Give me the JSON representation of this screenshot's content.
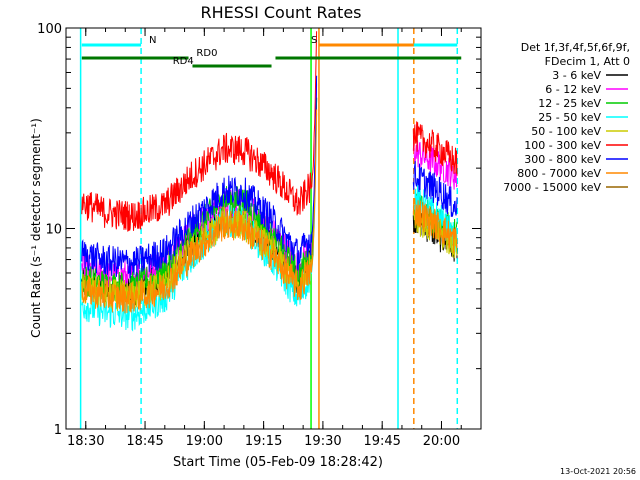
{
  "chart_data": {
    "type": "line",
    "title": "RHESSI Count Rates",
    "xlabel": "Start Time (05-Feb-09 18:28:42)",
    "ylabel": "Count Rate (s⁻¹ detector segment⁻¹)",
    "x_unit": "HH:MM (UT)",
    "xlim": [
      "18:25",
      "20:10"
    ],
    "x_ticks": [
      "18:30",
      "18:45",
      "19:00",
      "19:15",
      "19:30",
      "19:45",
      "20:00"
    ],
    "y_scale": "log",
    "ylim": [
      1,
      100
    ],
    "y_ticks": [
      "1",
      "10",
      "100"
    ],
    "grid": false,
    "legend_position": "right",
    "legend_header": [
      "Det 1f,3f,4f,5f,6f,9f,",
      "FDecim 1, Att 0"
    ],
    "series": [
      {
        "name": "3 - 6 keV",
        "color": "#000000",
        "x": [
          "18:29",
          "18:35",
          "18:42",
          "18:50",
          "18:57",
          "19:05",
          "19:10",
          "19:17",
          "19:24",
          "19:26",
          "19:53",
          "20:00",
          "20:04"
        ],
        "values": [
          5.3,
          5.0,
          4.9,
          5.7,
          8.5,
          11.5,
          11.2,
          8.3,
          5.5,
          6.8,
          11.5,
          9.0,
          8.0
        ]
      },
      {
        "name": "6 - 12 keV",
        "color": "#ff00ff",
        "x": [
          "18:29",
          "18:35",
          "18:42",
          "18:50",
          "18:57",
          "19:05",
          "19:10",
          "19:17",
          "19:24",
          "19:26",
          "19:53",
          "20:00",
          "20:04"
        ],
        "values": [
          6.3,
          5.9,
          5.8,
          6.7,
          10.0,
          13.5,
          13.2,
          9.7,
          6.5,
          7.5,
          24.5,
          20.5,
          18.0
        ]
      },
      {
        "name": "12 - 25 keV",
        "color": "#00cc00",
        "x": [
          "18:29",
          "18:35",
          "18:42",
          "18:50",
          "18:57",
          "19:05",
          "19:10",
          "19:17",
          "19:24",
          "19:26",
          "19:53",
          "20:00",
          "20:04"
        ],
        "values": [
          5.6,
          5.2,
          5.1,
          6.0,
          9.5,
          14.0,
          13.6,
          9.0,
          5.8,
          7.0,
          13.0,
          10.5,
          9.5
        ]
      },
      {
        "name": "25 - 50 keV",
        "color": "#00ffff",
        "x": [
          "18:29",
          "18:35",
          "18:42",
          "18:50",
          "18:57",
          "19:05",
          "19:10",
          "19:17",
          "19:24",
          "19:26",
          "19:53",
          "20:00",
          "20:04"
        ],
        "values": [
          4.2,
          3.8,
          3.7,
          4.5,
          7.2,
          11.0,
          10.6,
          7.0,
          4.4,
          5.5,
          14.5,
          11.0,
          8.5
        ]
      },
      {
        "name": "50 - 100 keV",
        "color": "#cccc00",
        "x": [
          "18:29",
          "18:35",
          "18:42",
          "18:50",
          "18:57",
          "19:05",
          "19:10",
          "19:17",
          "19:24",
          "19:26",
          "19:53",
          "20:00",
          "20:04"
        ],
        "values": [
          5.0,
          4.7,
          4.6,
          5.3,
          7.9,
          10.8,
          10.5,
          7.8,
          5.1,
          6.2,
          11.5,
          9.2,
          8.2
        ]
      },
      {
        "name": "100 - 300 keV",
        "color": "#ff0000",
        "x": [
          "18:29",
          "18:35",
          "18:42",
          "18:50",
          "18:57",
          "19:05",
          "19:10",
          "19:17",
          "19:24",
          "19:26",
          "19:53",
          "20:00",
          "20:04"
        ],
        "values": [
          13.5,
          12.0,
          11.5,
          13.0,
          18.5,
          25.0,
          24.5,
          19.0,
          13.0,
          15.5,
          29.0,
          24.5,
          21.0
        ]
      },
      {
        "name": "300 - 800 keV",
        "color": "#0000ff",
        "x": [
          "18:29",
          "18:35",
          "18:42",
          "18:50",
          "18:57",
          "19:05",
          "19:10",
          "19:17",
          "19:24",
          "19:26",
          "19:53",
          "20:00",
          "20:04"
        ],
        "values": [
          7.5,
          6.9,
          6.7,
          7.6,
          11.0,
          15.5,
          15.2,
          11.2,
          7.3,
          8.6,
          18.5,
          15.0,
          12.5
        ]
      },
      {
        "name": "800 - 7000 keV",
        "color": "#ff8800",
        "x": [
          "18:29",
          "18:35",
          "18:42",
          "18:50",
          "18:57",
          "19:05",
          "19:10",
          "19:17",
          "19:24",
          "19:26",
          "19:53",
          "20:00",
          "20:04"
        ],
        "values": [
          5.0,
          4.6,
          4.5,
          5.1,
          7.5,
          10.5,
          10.2,
          7.4,
          5.0,
          5.9,
          12.5,
          10.0,
          8.6
        ]
      },
      {
        "name": "7000 - 15000 keV",
        "color": "#996600",
        "x": [],
        "values": []
      }
    ],
    "vertical_lines": [
      {
        "x": "18:28:42",
        "color": "#00ffff",
        "style": "solid"
      },
      {
        "x": "18:44",
        "color": "#00ffff",
        "style": "dashed"
      },
      {
        "x": "19:27",
        "color": "#00ff00",
        "style": "solid"
      },
      {
        "x": "19:29",
        "color": "#ff8800",
        "style": "solid"
      },
      {
        "x": "19:49",
        "color": "#00ffff",
        "style": "solid"
      },
      {
        "x": "19:53",
        "color": "#ff8800",
        "style": "dashed"
      },
      {
        "x": "20:04",
        "color": "#00ffff",
        "style": "dashed"
      }
    ],
    "status_bars": [
      {
        "label": "N",
        "color": "#00ffff",
        "level": "top",
        "segments": [
          [
            "18:29",
            "18:44"
          ],
          [
            "19:49",
            "20:04"
          ]
        ],
        "label_at": "18:46"
      },
      {
        "label": "S",
        "color": "#ff8800",
        "level": "top",
        "segments": [
          [
            "19:29",
            "19:53"
          ]
        ],
        "label_at": "19:27"
      },
      {
        "label": "RD0",
        "color": "#007700",
        "level": "middle",
        "segments": [
          [
            "18:29",
            "18:56"
          ],
          [
            "19:18",
            "20:05"
          ]
        ],
        "label_at": "18:58"
      },
      {
        "label": "RD4",
        "color": "#007700",
        "level": "lower",
        "segments": [
          [
            "18:57",
            "19:17"
          ]
        ],
        "label_at": "18:52"
      }
    ],
    "gaps": [
      [
        "19:29",
        "19:51"
      ]
    ],
    "footer_timestamp": "13-Oct-2021 20:56"
  }
}
